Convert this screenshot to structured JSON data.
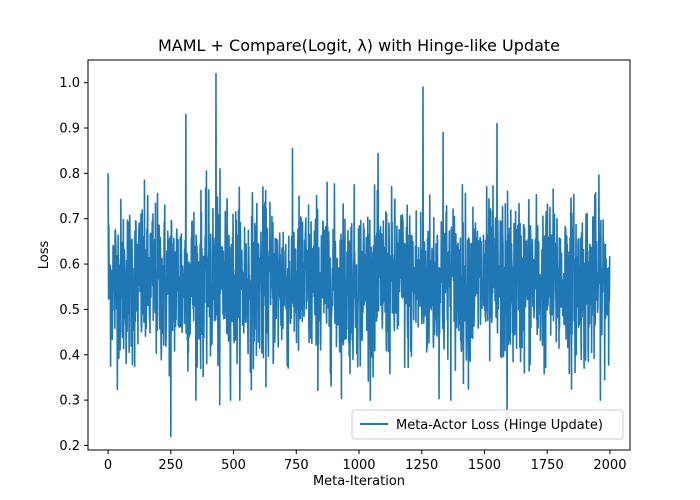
{
  "chart_data": {
    "type": "line",
    "title": "MAML + Compare(Logit, λ) with Hinge-like Update",
    "xlabel": "Meta-Iteration",
    "ylabel": "Loss",
    "xlim": [
      -80,
      2080
    ],
    "ylim": [
      0.19,
      1.05
    ],
    "xticks": [
      0,
      250,
      500,
      750,
      1000,
      1250,
      1500,
      1750,
      2000
    ],
    "yticks": [
      0.2,
      0.3,
      0.4,
      0.5,
      0.6,
      0.7,
      0.8,
      0.9,
      1.0
    ],
    "ytick_labels": [
      "0.2",
      "0.3",
      "0.4",
      "0.5",
      "0.6",
      "0.7",
      "0.8",
      "0.9",
      "1.0"
    ],
    "grid": false,
    "legend_position": "lower right",
    "series": [
      {
        "name": "Meta-Actor Loss (Hinge Update)",
        "color": "#1f77b4",
        "n_points": 2000,
        "mean": 0.56,
        "std": 0.09,
        "range": [
          0.22,
          1.02
        ],
        "peaks": [
          {
            "x": 0,
            "y": 0.8
          },
          {
            "x": 250,
            "y": 0.22
          },
          {
            "x": 310,
            "y": 0.93
          },
          {
            "x": 430,
            "y": 1.02
          },
          {
            "x": 445,
            "y": 0.29
          },
          {
            "x": 1255,
            "y": 0.99
          },
          {
            "x": 1335,
            "y": 0.89
          },
          {
            "x": 1550,
            "y": 0.91
          },
          {
            "x": 1590,
            "y": 0.26
          }
        ]
      }
    ]
  }
}
